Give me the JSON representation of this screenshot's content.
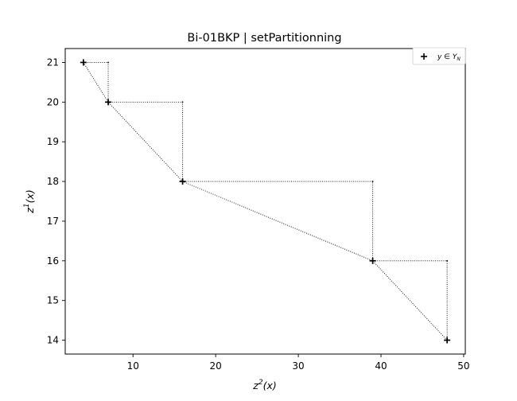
{
  "chart_data": {
    "type": "scatter",
    "title": "Bi-01BKP | setPartitionning",
    "xlabel": "z",
    "xlabel_sup": "2",
    "xlabel_arg": "(x)",
    "ylabel": "z",
    "ylabel_sup": "1",
    "ylabel_arg": "(x)",
    "xlim": [
      1.8,
      50.2
    ],
    "ylim": [
      13.65,
      21.35
    ],
    "xticks": [
      10,
      20,
      30,
      40,
      50
    ],
    "yticks": [
      14,
      15,
      16,
      17,
      18,
      19,
      20,
      21
    ],
    "grid": false,
    "legend_position": "top-right",
    "series": [
      {
        "name": "y ∈ Y_N",
        "legend_text": "y ∈ Y",
        "legend_sub": "N",
        "marker": "plus",
        "color": "#000000",
        "x": [
          4,
          7,
          16,
          39,
          48
        ],
        "y": [
          21,
          20,
          18,
          16,
          14
        ]
      }
    ],
    "connecting_line": {
      "style": "dotted",
      "color": "#000000"
    },
    "staircase": {
      "style": "dotted",
      "color": "#000000",
      "corner_points_x": [
        7,
        16,
        39,
        48
      ],
      "corner_points_y": [
        21,
        20,
        18,
        16
      ]
    }
  }
}
